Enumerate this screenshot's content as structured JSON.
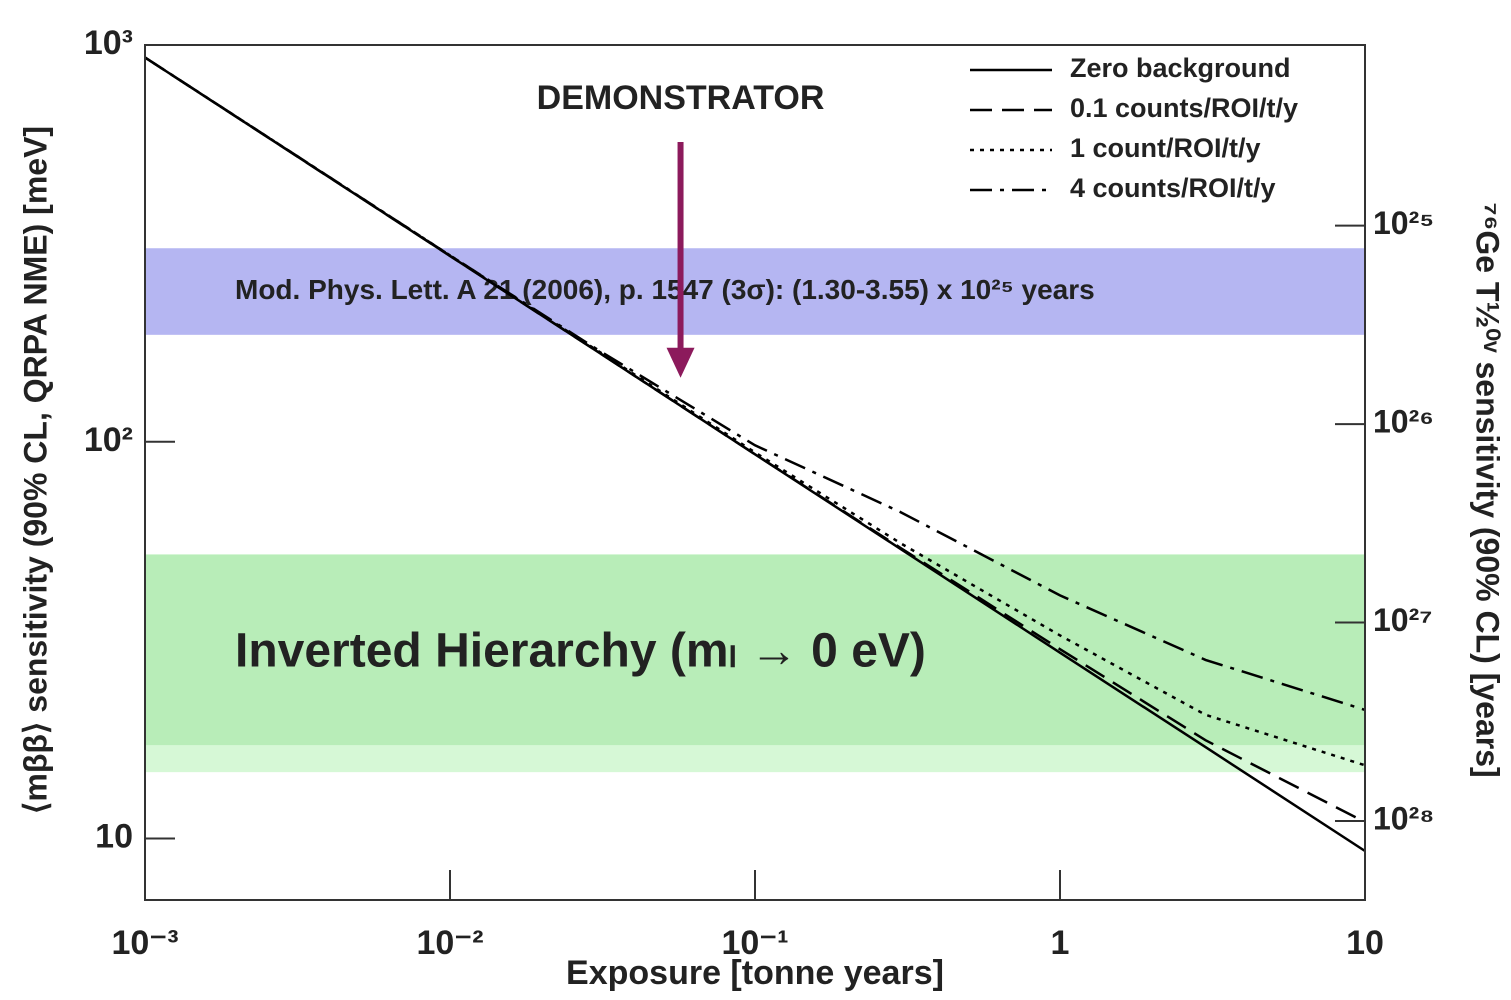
{
  "chart_data": {
    "type": "line",
    "x_label": "Exposure [tonne years]",
    "y_label": "⟨mββ⟩ sensitivity (90% CL, QRPA NME) [meV]",
    "y2_label": "⁷⁶Ge T½⁰ᵛ sensitivity (90% CL) [years]",
    "log_x": true,
    "log_y": true,
    "log_y2": true,
    "xlim": [
      0.001,
      10
    ],
    "xticks": [
      {
        "value": 0.001,
        "label": "10⁻³"
      },
      {
        "value": 0.01,
        "label": "10⁻²"
      },
      {
        "value": 0.1,
        "label": "10⁻¹"
      },
      1,
      10
    ],
    "ylim": [
      7,
      1000
    ],
    "yticks": [
      10,
      {
        "value": 100,
        "label": "10²"
      },
      {
        "value": 1000,
        "label": "10³"
      }
    ],
    "y2lim": [
      2.5e+28,
      1.23e+24
    ],
    "y2ticks": [
      {
        "value": 1e+25,
        "label": "10²⁵"
      },
      {
        "value": 1e+26,
        "label": "10²⁶"
      },
      {
        "value": 1e+27,
        "label": "10²⁷"
      },
      {
        "value": 1e+28,
        "label": "10²⁸"
      }
    ],
    "legend": "upper right",
    "x": [
      0.001,
      0.003,
      0.01,
      0.03,
      0.1,
      0.3,
      1,
      3,
      10
    ],
    "series": [
      {
        "name": "Zero background",
        "color": "#000000",
        "dash": "solid",
        "values": [
          930,
          537,
          294,
          170,
          93,
          53.7,
          29.4,
          17.0,
          9.3
        ]
      },
      {
        "name": "0.1 counts/ROI/t/y",
        "color": "#000000",
        "dash": "dash",
        "values": [
          930,
          537,
          294,
          170,
          93,
          54,
          30,
          17.7,
          11.0
        ]
      },
      {
        "name": "1 count/ROI/t/y",
        "color": "#000000",
        "dash": "dot",
        "values": [
          930,
          538,
          295,
          171,
          94,
          55.5,
          32.5,
          20.5,
          15.3
        ]
      },
      {
        "name": "4 counts/ROI/t/y",
        "color": "#000000",
        "dash": "dashdot",
        "values": [
          930,
          538,
          295,
          172,
          98,
          66.5,
          41,
          28.2,
          21.1
        ]
      }
    ],
    "bands": [
      {
        "axis": "y2",
        "range": [
          1.3e+25,
          3.55e+25
        ],
        "color": "#b5b6f2",
        "label": "Mod. Phys. Lett. A 21 (2006), p. 1547 (3σ): (1.30-3.55) x 10²⁵ years",
        "label_color": "#2b2f8c"
      },
      {
        "axis": "y",
        "range": [
          14.7,
          52
        ],
        "color": "#d6f8d6"
      },
      {
        "axis": "y",
        "range": [
          17.2,
          52
        ],
        "color": "#b8edb8",
        "label": "Inverted Hierarchy (mₗ → 0 eV)",
        "label_color": "#2e8b34"
      }
    ],
    "annotations": [
      {
        "text": "DEMONSTRATOR",
        "x": 0.057,
        "y": 145,
        "color": "#8c1a5c"
      }
    ]
  }
}
